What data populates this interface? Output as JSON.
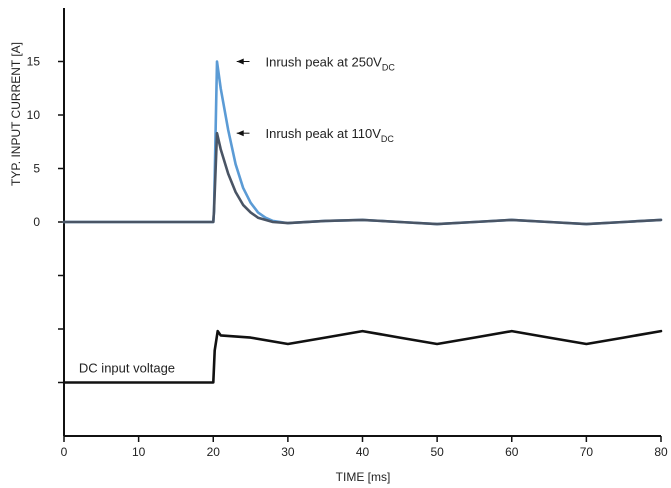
{
  "chart_data": {
    "type": "line",
    "xlabel": "TIME [ms]",
    "ylabel": "TYP. INPUT CURRENT [A]",
    "xlim": [
      0,
      80
    ],
    "ylim": [
      -20,
      20
    ],
    "x_ticks": [
      0,
      10,
      20,
      30,
      40,
      50,
      60,
      70,
      80
    ],
    "y_ticks_labeled": [
      0,
      5,
      10,
      15
    ],
    "y_ticks_unlabeled": [
      -5,
      -10,
      -15
    ],
    "grid": false,
    "colors": {
      "inrush_250": "#5b9bd5",
      "inrush_110": "#4a5565",
      "voltage": "#111111",
      "axis": "#111111"
    },
    "series": [
      {
        "key": "inrush_250",
        "x": [
          0,
          20,
          20.1,
          20.5,
          21,
          22,
          23,
          24,
          25,
          26,
          27,
          28,
          30,
          35,
          40,
          45,
          50,
          55,
          60,
          65,
          70,
          75,
          80
        ],
        "y": [
          0,
          0,
          1,
          15,
          12.5,
          8.6,
          5.4,
          3.2,
          1.8,
          0.9,
          0.4,
          0.1,
          -0.1,
          0.1,
          0.2,
          0.0,
          -0.2,
          0.0,
          0.2,
          0.0,
          -0.2,
          0.0,
          0.2
        ]
      },
      {
        "key": "inrush_110",
        "x": [
          0,
          20,
          20.1,
          20.5,
          21,
          22,
          23,
          24,
          25,
          26,
          27,
          28,
          30,
          35,
          40,
          45,
          50,
          55,
          60,
          65,
          70,
          75,
          80
        ],
        "y": [
          0,
          0,
          1,
          8.3,
          6.8,
          4.5,
          2.8,
          1.6,
          0.9,
          0.4,
          0.2,
          0.0,
          -0.1,
          0.1,
          0.2,
          0.0,
          -0.2,
          0.0,
          0.2,
          0.0,
          -0.2,
          0.0,
          0.2
        ]
      },
      {
        "key": "voltage",
        "name": "DC input voltage",
        "x": [
          0,
          20,
          20.2,
          20.6,
          21,
          25,
          30,
          35,
          40,
          45,
          50,
          55,
          60,
          65,
          70,
          75,
          80
        ],
        "y": [
          -15,
          -15,
          -12,
          -10.2,
          -10.6,
          -10.8,
          -11.4,
          -10.8,
          -10.2,
          -10.8,
          -11.4,
          -10.8,
          -10.2,
          -10.8,
          -11.4,
          -10.8,
          -10.2
        ]
      }
    ],
    "annotations": [
      {
        "series": "inrush_250",
        "main": "Inrush peak at 250V",
        "sub": "DC",
        "arrow_to": [
          21.0,
          15
        ],
        "text_at": [
          27.0,
          15
        ]
      },
      {
        "series": "inrush_110",
        "main": "Inrush peak at 110V",
        "sub": "DC",
        "arrow_to": [
          21.0,
          8.3
        ],
        "text_at": [
          27.0,
          8.3
        ]
      }
    ]
  }
}
